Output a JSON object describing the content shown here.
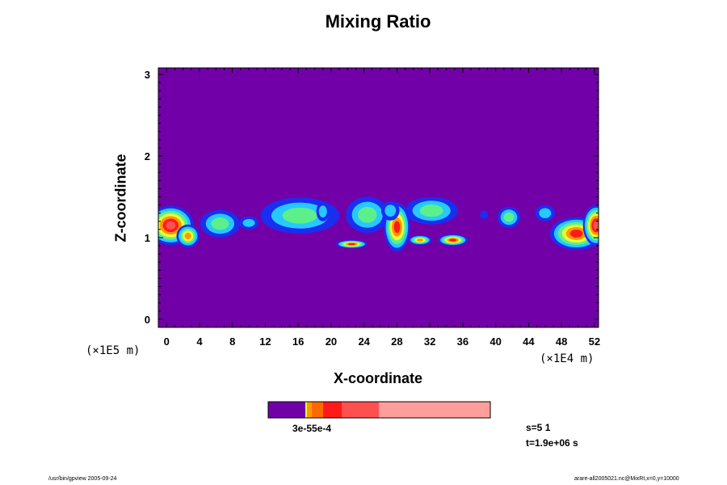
{
  "chart_data": {
    "type": "heatmap",
    "title": "Mixing Ratio",
    "xlabel": "X-coordinate",
    "ylabel": "Z-coordinate",
    "x_unit": "(×1E4 m)",
    "y_unit": "(×1E5 m)",
    "xlim": [
      -1,
      52.5
    ],
    "ylim": [
      -0.1,
      3.08
    ],
    "x_ticks": [
      0,
      4,
      8,
      12,
      16,
      20,
      24,
      28,
      32,
      36,
      40,
      44,
      48,
      52
    ],
    "y_ticks": [
      0,
      1,
      2,
      3
    ],
    "background_color": "#7200a8",
    "colors": {
      "level1": "#1a2ef0",
      "level2": "#27c8ff",
      "level3": "#5cf08a",
      "level4": "#e8ff3a",
      "level5": "#ff9900",
      "level6": "#ff1a1a",
      "level7": "#ff5050"
    },
    "blobs": [
      {
        "x": 0.5,
        "z": 1.15,
        "rx": 2.8,
        "rz": 0.24,
        "peak": 7
      },
      {
        "x": 2.6,
        "z": 1.02,
        "rx": 1.4,
        "rz": 0.14,
        "peak": 5
      },
      {
        "x": 6.5,
        "z": 1.17,
        "rx": 2.4,
        "rz": 0.17,
        "peak": 3
      },
      {
        "x": 10.0,
        "z": 1.18,
        "rx": 1.2,
        "rz": 0.08,
        "peak": 2
      },
      {
        "x": 16.2,
        "z": 1.27,
        "rx": 4.8,
        "rz": 0.22,
        "peak": 3
      },
      {
        "x": 19.0,
        "z": 1.32,
        "rx": 0.8,
        "rz": 0.12,
        "peak": 2
      },
      {
        "x": 22.5,
        "z": 0.92,
        "rx": 1.9,
        "rz": 0.05,
        "peak": 6
      },
      {
        "x": 24.4,
        "z": 1.28,
        "rx": 2.6,
        "rz": 0.22,
        "peak": 3
      },
      {
        "x": 28.0,
        "z": 1.13,
        "rx": 1.6,
        "rz": 0.3,
        "peak": 6
      },
      {
        "x": 27.2,
        "z": 1.33,
        "rx": 1.1,
        "rz": 0.12,
        "peak": 2
      },
      {
        "x": 32.2,
        "z": 1.33,
        "rx": 3.2,
        "rz": 0.17,
        "peak": 3
      },
      {
        "x": 30.8,
        "z": 0.97,
        "rx": 1.4,
        "rz": 0.06,
        "peak": 5
      },
      {
        "x": 34.8,
        "z": 0.97,
        "rx": 1.8,
        "rz": 0.07,
        "peak": 6
      },
      {
        "x": 38.6,
        "z": 1.28,
        "rx": 0.5,
        "rz": 0.05,
        "peak": 1
      },
      {
        "x": 41.6,
        "z": 1.25,
        "rx": 1.4,
        "rz": 0.13,
        "peak": 3
      },
      {
        "x": 46.0,
        "z": 1.3,
        "rx": 1.2,
        "rz": 0.1,
        "peak": 2
      },
      {
        "x": 49.8,
        "z": 1.05,
        "rx": 3.2,
        "rz": 0.2,
        "peak": 6
      },
      {
        "x": 52.2,
        "z": 1.15,
        "rx": 1.6,
        "rz": 0.25,
        "peak": 7
      }
    ]
  },
  "colorbar": {
    "segments": [
      {
        "color": "#7200a8",
        "width": 46
      },
      {
        "color": "#e8ff3a",
        "width": 2
      },
      {
        "color": "#ff9900",
        "width": 6
      },
      {
        "color": "#ff6a00",
        "width": 14
      },
      {
        "color": "#ff1a1a",
        "width": 23
      },
      {
        "color": "#ff5050",
        "width": 46
      },
      {
        "color": "#ff9e9a",
        "width": 138
      }
    ],
    "tick_labels": "3e-55e-4"
  },
  "info": {
    "step": "s=5 1",
    "time": "t=1.9e+06 s"
  },
  "footer": {
    "left": "/usr/bin/gpview 2005-09-24",
    "right": "arare-all2005021.nc@MixRt,x=0,y=10000"
  }
}
